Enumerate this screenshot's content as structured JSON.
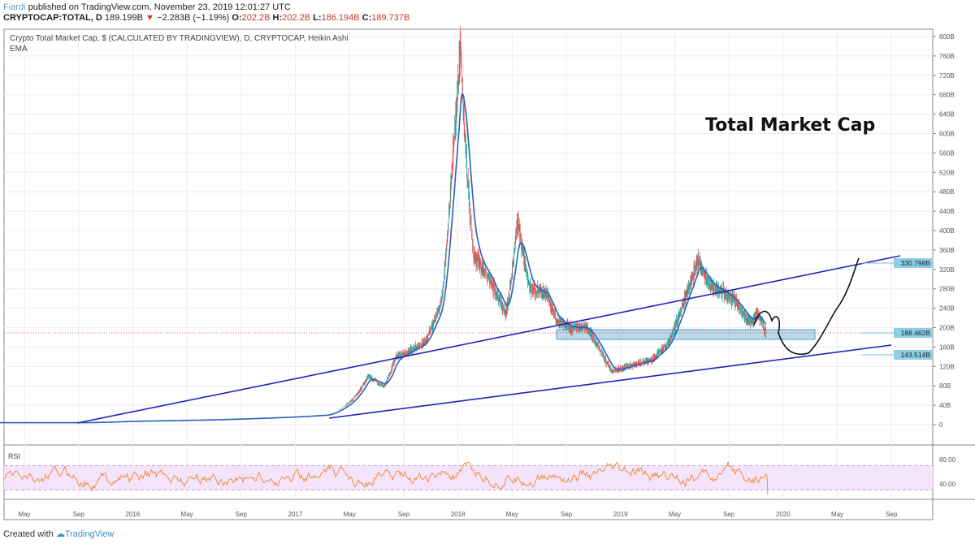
{
  "header": {
    "author": "Fiardi",
    "published_text": "published on TradingView.com, November 23, 2019 12:01:27 UTC",
    "symbol": "CRYPTOCAP:TOTAL, D",
    "last": "189.199B",
    "change": "−2.283B (−1.19%)",
    "open_label": "O:",
    "open": "202.2B",
    "high_label": "H:",
    "high": "202.2B",
    "low_label": "L:",
    "low": "186.194B",
    "close_label": "C:",
    "close": "189.737B"
  },
  "legend": {
    "title": "Crypto Total Market Cap, $ (CALCULATED BY TRADINGVIEW), D, CRYPTOCAP, Heikin Ashi",
    "indicator": "EMA"
  },
  "annotation": "Total Market Cap",
  "footer": {
    "created": "Created with",
    "brand": "TradingView"
  },
  "colors": {
    "up": "#26a69a",
    "down": "#ef5350",
    "ema": "#2b5fb8",
    "trend": "#2222bb",
    "rsi": "#f0862c",
    "zone": "#a9cfe6"
  },
  "chart_data": {
    "type": "line",
    "title": "Crypto Total Market Cap",
    "price_axis": {
      "ticks": [
        "800B",
        "760B",
        "720B",
        "680B",
        "640B",
        "600B",
        "560B",
        "520B",
        "480B",
        "440B",
        "400B",
        "360B",
        "320B",
        "280B",
        "240B",
        "200B",
        "160B",
        "120B",
        "80B",
        "40B",
        "0"
      ],
      "range": [
        0,
        800
      ]
    },
    "price_labels": [
      "330.798B",
      "188.462B",
      "143.514B"
    ],
    "time_axis": [
      "May",
      "Sep",
      "2016",
      "May",
      "Sep",
      "2017",
      "May",
      "Sep",
      "2018",
      "May",
      "Sep",
      "2019",
      "May",
      "Sep",
      "2020",
      "May",
      "Sep"
    ],
    "rsi": {
      "label": "RSI",
      "ticks": [
        "80.00",
        "40.00"
      ],
      "bands": [
        70,
        30
      ]
    },
    "price_keypoints": [
      [
        2015.2,
        4
      ],
      [
        2015.7,
        4
      ],
      [
        2016.0,
        7
      ],
      [
        2016.5,
        10
      ],
      [
        2017.0,
        16
      ],
      [
        2017.2,
        20
      ],
      [
        2017.35,
        50
      ],
      [
        2017.45,
        100
      ],
      [
        2017.55,
        80
      ],
      [
        2017.62,
        140
      ],
      [
        2017.7,
        150
      ],
      [
        2017.8,
        170
      ],
      [
        2017.9,
        250
      ],
      [
        2017.97,
        550
      ],
      [
        2018.02,
        780
      ],
      [
        2018.1,
        350
      ],
      [
        2018.2,
        300
      ],
      [
        2018.3,
        230
      ],
      [
        2018.37,
        420
      ],
      [
        2018.45,
        280
      ],
      [
        2018.55,
        270
      ],
      [
        2018.62,
        210
      ],
      [
        2018.7,
        200
      ],
      [
        2018.8,
        200
      ],
      [
        2018.87,
        160
      ],
      [
        2018.95,
        110
      ],
      [
        2019.05,
        120
      ],
      [
        2019.2,
        135
      ],
      [
        2019.3,
        170
      ],
      [
        2019.38,
        240
      ],
      [
        2019.48,
        340
      ],
      [
        2019.55,
        290
      ],
      [
        2019.65,
        270
      ],
      [
        2019.72,
        250
      ],
      [
        2019.8,
        210
      ],
      [
        2019.85,
        230
      ],
      [
        2019.9,
        189
      ]
    ]
  }
}
